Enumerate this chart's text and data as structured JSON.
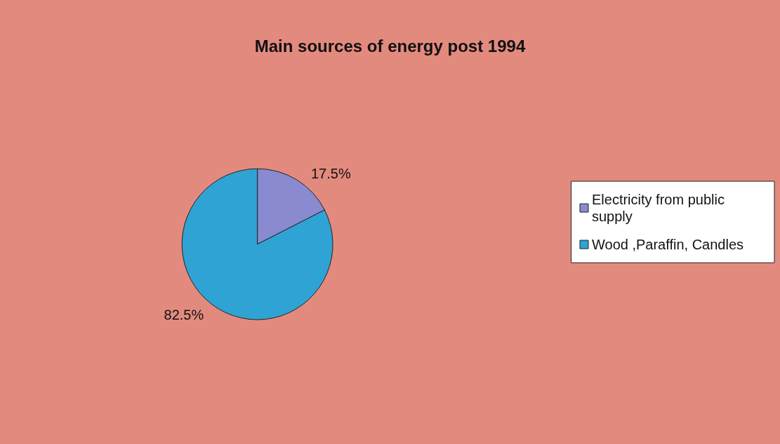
{
  "chart_data": {
    "type": "pie",
    "title": "Main sources of energy post 1994",
    "categories": [
      "Electricity from public supply",
      "Wood ,Paraffin, Candles"
    ],
    "values": [
      17.5,
      82.5
    ],
    "colors": [
      "#8a8ad0",
      "#2fa3d4"
    ],
    "value_labels": [
      "17.5%",
      "82.5%"
    ],
    "legend": "right"
  }
}
